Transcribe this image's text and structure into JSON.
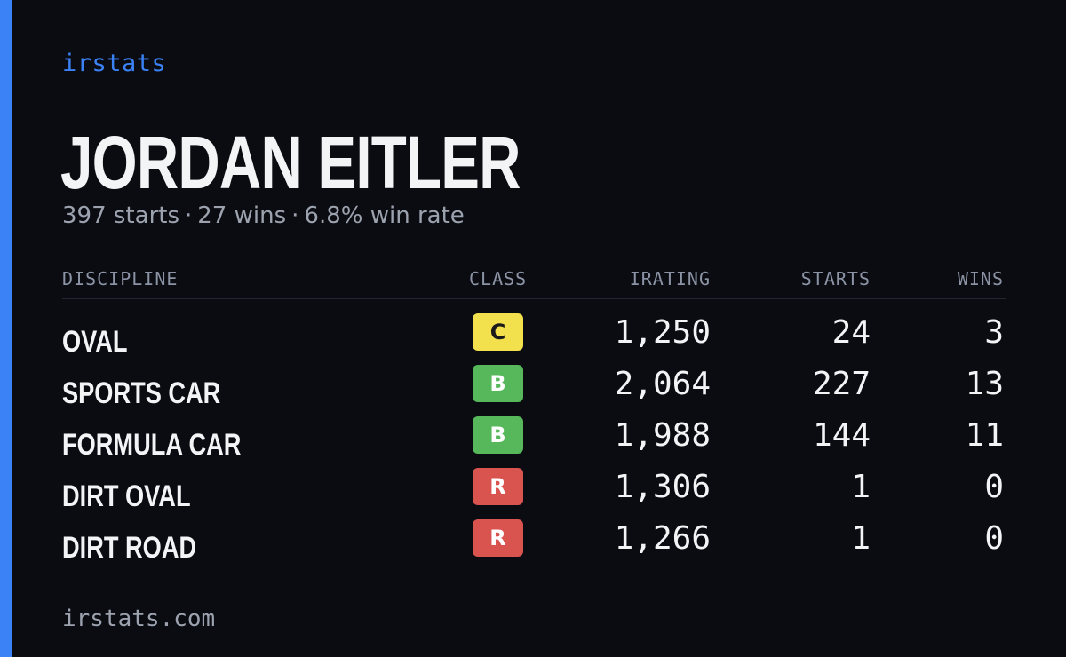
{
  "brand": "irstats",
  "driver": {
    "name": "JORDAN EITLER",
    "summary": {
      "starts": "397 starts",
      "wins": "27 wins",
      "win_rate": "6.8% win rate",
      "separator": "·"
    }
  },
  "table": {
    "headers": {
      "discipline": "DISCIPLINE",
      "class": "CLASS",
      "irating": "IRATING",
      "starts": "STARTS",
      "wins": "WINS"
    },
    "rows": [
      {
        "discipline": "OVAL",
        "class": "C",
        "irating": "1,250",
        "starts": "24",
        "wins": "3"
      },
      {
        "discipline": "SPORTS CAR",
        "class": "B",
        "irating": "2,064",
        "starts": "227",
        "wins": "13"
      },
      {
        "discipline": "FORMULA CAR",
        "class": "B",
        "irating": "1,988",
        "starts": "144",
        "wins": "11"
      },
      {
        "discipline": "DIRT OVAL",
        "class": "R",
        "irating": "1,306",
        "starts": "1",
        "wins": "0"
      },
      {
        "discipline": "DIRT ROAD",
        "class": "R",
        "irating": "1,266",
        "starts": "1",
        "wins": "0"
      }
    ]
  },
  "class_colors": {
    "C": {
      "bg": "#f2e04d",
      "fg": "#1a1a1a"
    },
    "B": {
      "bg": "#56b85a",
      "fg": "#ffffff"
    },
    "R": {
      "bg": "#d9534f",
      "fg": "#ffffff"
    }
  },
  "colors": {
    "accent": "#3b82f6",
    "background": "#0a0c12",
    "text": "#f3f4f6",
    "muted": "#9ca3af"
  },
  "footer": "irstats.com"
}
